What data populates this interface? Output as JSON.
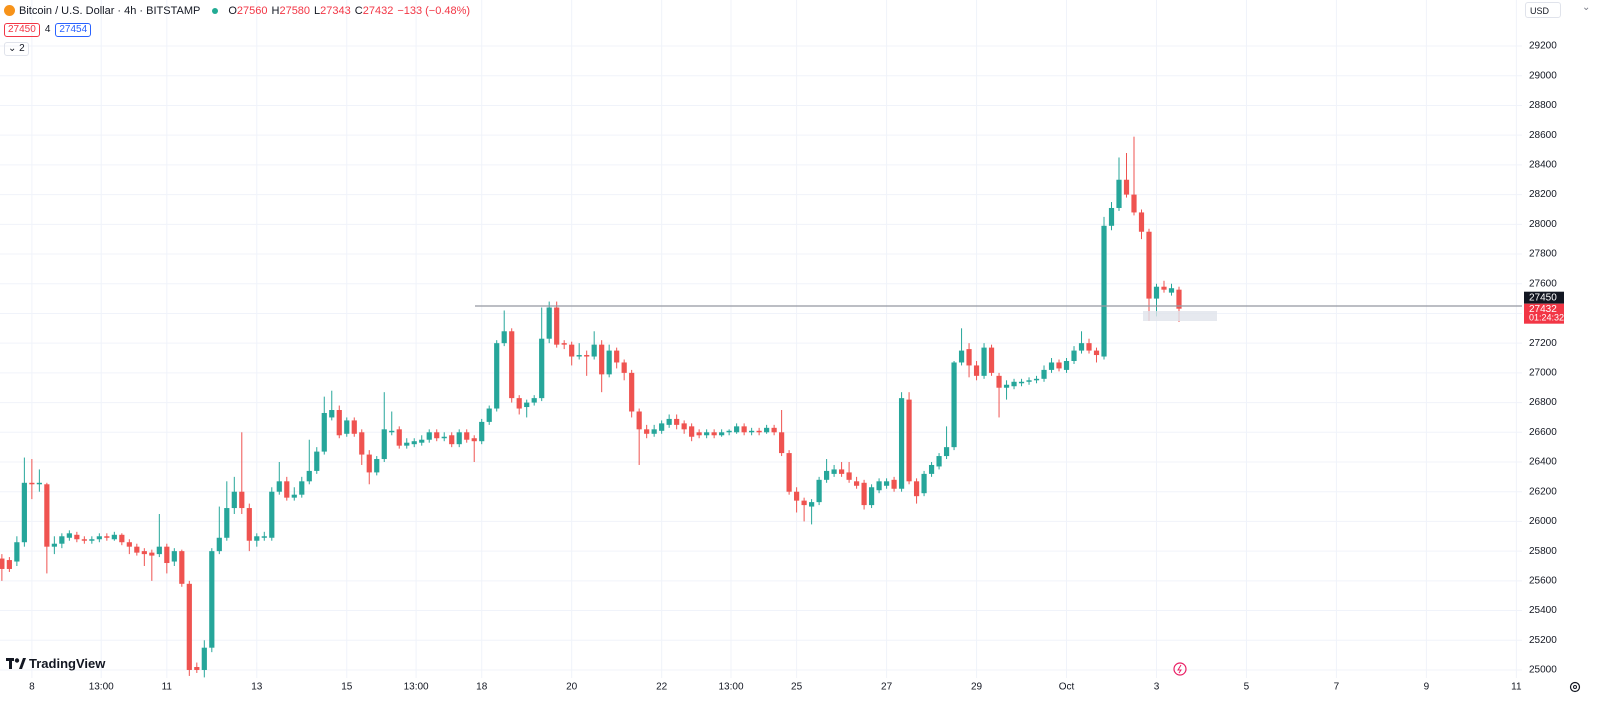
{
  "header": {
    "symbol": "Bitcoin / U.S. Dollar · 4h · BITSTAMP",
    "o": "O",
    "h": "H",
    "l": "L",
    "c": "C",
    "change": "−133 (−0.48%)",
    "bid": 27450,
    "spread": 4,
    "ask": 27454,
    "indicators": 2,
    "currency": "USD",
    "countdown": "01:24:32",
    "brand": "TradingView"
  },
  "chart_data": {
    "type": "candlestick",
    "x": [
      152,
      156,
      160,
      164,
      168,
      172,
      176,
      180,
      184,
      188,
      192,
      196,
      200,
      204,
      208,
      212,
      216,
      220,
      224,
      228,
      232,
      236,
      240,
      244,
      248,
      252,
      256,
      260,
      264,
      268,
      272,
      276,
      280,
      284,
      288,
      292,
      296,
      300,
      304,
      308,
      312,
      316,
      320,
      324,
      328,
      332,
      336,
      340,
      344,
      348,
      352,
      356,
      360,
      364,
      368,
      372,
      376,
      380,
      384,
      388,
      392,
      396,
      400,
      404,
      408,
      412,
      416,
      420,
      424,
      428,
      432,
      436,
      440,
      444,
      448,
      452,
      456,
      460,
      464,
      468,
      472,
      476,
      480,
      484,
      488,
      492,
      496,
      500,
      504,
      508,
      512,
      516,
      520,
      524,
      528,
      532,
      536,
      540,
      544,
      548,
      552,
      556,
      560,
      564,
      568,
      572,
      576,
      580,
      584,
      588,
      592,
      596,
      600,
      604,
      608,
      612,
      616,
      620,
      624,
      628,
      632,
      636,
      640,
      644,
      648,
      652,
      656,
      660,
      664,
      668,
      672,
      676,
      680,
      684,
      688,
      692,
      696,
      700,
      704,
      708,
      712,
      716,
      720,
      724,
      728,
      732,
      736,
      740,
      744,
      748,
      752,
      756,
      760,
      764,
      768,
      772,
      776,
      780
    ],
    "open": [
      25750,
      25740,
      25730,
      25860,
      26260,
      26250,
      26250,
      25830,
      25850,
      25890,
      25910,
      25880,
      25870,
      25880,
      25900,
      25880,
      25910,
      25860,
      25830,
      25800,
      25790,
      25780,
      25830,
      25730,
      25800,
      25580,
      25020,
      25000,
      25150,
      25800,
      25890,
      26090,
      26200,
      26090,
      25870,
      25890,
      25890,
      26200,
      26270,
      26160,
      26180,
      26270,
      26340,
      26470,
      26700,
      26750,
      26590,
      26680,
      26600,
      26450,
      26330,
      26420,
      26600,
      26620,
      26510,
      26520,
      26530,
      26550,
      26600,
      26560,
      26580,
      26520,
      26600,
      26560,
      26540,
      26670,
      26760,
      27200,
      27280,
      26830,
      26770,
      26800,
      26830,
      27230,
      27440,
      27200,
      27190,
      27110,
      27120,
      27110,
      27190,
      26990,
      27150,
      27070,
      27000,
      26740,
      26620,
      26590,
      26610,
      26650,
      26690,
      26660,
      26640,
      26600,
      26580,
      26600,
      26580,
      26600,
      26600,
      26640,
      26600,
      26610,
      26600,
      26630,
      26600,
      26460,
      26200,
      26140,
      26100,
      26130,
      26280,
      26320,
      26350,
      26330,
      26270,
      26260,
      26110,
      26210,
      26240,
      26280,
      26220,
      26820,
      26270,
      26190,
      26320,
      26370,
      26440,
      26500,
      27070,
      27160,
      27050,
      26980,
      27170,
      26980,
      26900,
      26910,
      26930,
      26940,
      26950,
      26960,
      27020,
      27070,
      27020,
      27080,
      27150,
      27200,
      27150,
      27110,
      27990,
      28110,
      28300,
      28200,
      28080,
      27950,
      27500,
      27580,
      27540,
      27560
    ],
    "high": [
      25780,
      25760,
      25900,
      26430,
      26420,
      26350,
      26260,
      25900,
      25920,
      25940,
      25930,
      25900,
      25900,
      25920,
      25920,
      25930,
      25920,
      25880,
      25850,
      25820,
      25810,
      26050,
      25850,
      25820,
      25810,
      25600,
      25050,
      25200,
      25820,
      26100,
      26270,
      26300,
      26600,
      26120,
      25920,
      25930,
      26230,
      26400,
      26300,
      26230,
      26300,
      26550,
      26500,
      26840,
      26880,
      26780,
      26700,
      26700,
      26620,
      26480,
      26440,
      26870,
      26740,
      26640,
      26560,
      26560,
      26580,
      26620,
      26620,
      26600,
      26600,
      26620,
      26620,
      26580,
      26690,
      26780,
      27220,
      27420,
      27300,
      26850,
      26820,
      26850,
      27440,
      27480,
      27480,
      27220,
      27210,
      27200,
      27150,
      27280,
      27220,
      27190,
      27170,
      27090,
      27020,
      26760,
      26650,
      26650,
      26680,
      26720,
      26720,
      26680,
      26660,
      26620,
      26620,
      26620,
      26620,
      26620,
      26660,
      26660,
      26630,
      26630,
      26650,
      26650,
      26750,
      26480,
      26230,
      26160,
      26150,
      26300,
      26420,
      26380,
      26400,
      26400,
      26300,
      26280,
      26250,
      26290,
      26290,
      26300,
      26870,
      26870,
      26290,
      26340,
      26400,
      26460,
      26640,
      27080,
      27300,
      27200,
      27080,
      27200,
      27190,
      27000,
      26950,
      26960,
      26960,
      26970,
      26980,
      27050,
      27100,
      27090,
      27100,
      27180,
      27280,
      27230,
      27170,
      28050,
      28150,
      28450,
      28480,
      28590,
      28100,
      27970,
      27600,
      27620,
      27600,
      27580
    ],
    "low": [
      25600,
      25660,
      25700,
      25830,
      26150,
      26200,
      25650,
      25780,
      25820,
      25870,
      25860,
      25850,
      25850,
      25860,
      25870,
      25870,
      25840,
      25780,
      25770,
      25700,
      25600,
      25760,
      25650,
      25700,
      25560,
      24960,
      24980,
      24950,
      25120,
      25780,
      25870,
      26050,
      26050,
      25800,
      25830,
      25870,
      25870,
      26180,
      26140,
      26140,
      26160,
      26250,
      26320,
      26450,
      26680,
      26560,
      26570,
      26570,
      26380,
      26250,
      26310,
      26400,
      26580,
      26490,
      26490,
      26500,
      26510,
      26530,
      26540,
      26540,
      26500,
      26500,
      26530,
      26400,
      26520,
      26650,
      26740,
      27180,
      26800,
      26720,
      26700,
      26780,
      26810,
      27200,
      27170,
      27160,
      27050,
      27090,
      26980,
      27090,
      26870,
      26970,
      27030,
      26950,
      26700,
      26380,
      26560,
      26570,
      26590,
      26630,
      26620,
      26590,
      26540,
      26560,
      26560,
      26560,
      26570,
      26580,
      26590,
      26580,
      26580,
      26580,
      26590,
      26580,
      26440,
      26180,
      26060,
      26000,
      25980,
      26110,
      26260,
      26300,
      26300,
      26260,
      26220,
      26080,
      26090,
      26190,
      26220,
      26200,
      26200,
      26250,
      26120,
      26170,
      26300,
      26350,
      26420,
      26480,
      27050,
      26970,
      26950,
      26960,
      26980,
      26700,
      26820,
      26890,
      26910,
      26920,
      26930,
      26940,
      27000,
      27010,
      27000,
      27060,
      27130,
      27130,
      27070,
      27090,
      27960,
      28090,
      28180,
      28060,
      27900,
      27350,
      27380,
      27540,
      27520,
      27343
    ],
    "close": [
      25680,
      25680,
      25860,
      26260,
      26250,
      26260,
      25830,
      25850,
      25900,
      25920,
      25880,
      25870,
      25880,
      25900,
      25890,
      25910,
      25860,
      25830,
      25790,
      25780,
      25770,
      25830,
      25720,
      25800,
      25580,
      25000,
      25000,
      25150,
      25800,
      25890,
      26090,
      26200,
      26090,
      25870,
      25900,
      25900,
      26200,
      26270,
      26160,
      26180,
      26270,
      26340,
      26470,
      26730,
      26750,
      26580,
      26680,
      26590,
      26450,
      26330,
      26420,
      26620,
      26610,
      26510,
      26530,
      26540,
      26550,
      26600,
      26560,
      26570,
      26520,
      26600,
      26550,
      26540,
      26670,
      26760,
      27200,
      27280,
      26830,
      26760,
      26800,
      26830,
      27230,
      27440,
      27190,
      27190,
      27110,
      27120,
      27110,
      27190,
      26990,
      27150,
      27070,
      27000,
      26740,
      26620,
      26590,
      26620,
      26660,
      26690,
      26650,
      26620,
      26570,
      26580,
      26600,
      26580,
      26600,
      26610,
      26640,
      26600,
      26610,
      26600,
      26630,
      26600,
      26460,
      26200,
      26140,
      26110,
      26130,
      26280,
      26340,
      26350,
      26320,
      26280,
      26240,
      26110,
      26230,
      26270,
      26270,
      26220,
      26830,
      26270,
      26170,
      26320,
      26380,
      26440,
      26500,
      27070,
      27150,
      27050,
      26980,
      27170,
      27000,
      26900,
      26920,
      26940,
      26940,
      26950,
      26960,
      27020,
      27070,
      27030,
      27080,
      27150,
      27200,
      27150,
      27120,
      27990,
      28110,
      28300,
      28200,
      28080,
      27950,
      27500,
      27580,
      27560,
      27570,
      27432
    ],
    "up_color": "#26a69a",
    "down_color": "#ef5350",
    "xlim": [
      151,
      963
    ],
    "xticks": [
      {
        "value": 168,
        "label": "8"
      },
      {
        "value": 205,
        "label": "13:00"
      },
      {
        "value": 240,
        "label": "11"
      },
      {
        "value": 288,
        "label": "13"
      },
      {
        "value": 336,
        "label": "15"
      },
      {
        "value": 373,
        "label": "13:00"
      },
      {
        "value": 408,
        "label": "18"
      },
      {
        "value": 456,
        "label": "20"
      },
      {
        "value": 504,
        "label": "22"
      },
      {
        "value": 541,
        "label": "13:00"
      },
      {
        "value": 576,
        "label": "25"
      },
      {
        "value": 624,
        "label": "27"
      },
      {
        "value": 672,
        "label": "29"
      },
      {
        "value": 720,
        "label": "Oct"
      },
      {
        "value": 768,
        "label": "3"
      },
      {
        "value": 816,
        "label": "5"
      },
      {
        "value": 864,
        "label": "7"
      },
      {
        "value": 912,
        "label": "9"
      },
      {
        "value": 960,
        "label": "11"
      }
    ],
    "ylim": [
      24946,
      29510
    ],
    "yticks": [
      25000,
      25200,
      25400,
      25600,
      25800,
      26000,
      26200,
      26400,
      26600,
      26800,
      27000,
      27200,
      27400,
      27600,
      27800,
      28000,
      28200,
      28400,
      28600,
      28800,
      29000,
      29200
    ],
    "grid": true,
    "horizontal_line": 27450
  }
}
